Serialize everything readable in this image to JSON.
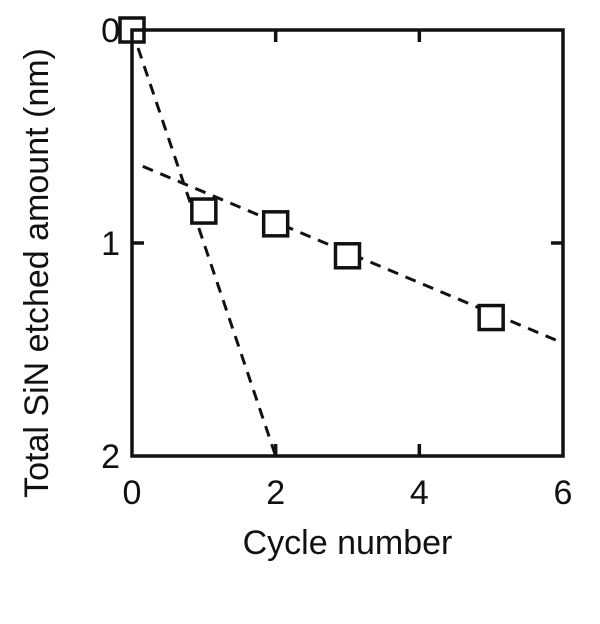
{
  "chart_data": {
    "type": "scatter",
    "title": "",
    "xlabel": "Cycle number",
    "ylabel": "Total SiN etched amount (nm)",
    "xlim": [
      0,
      6
    ],
    "ylim": [
      0,
      2
    ],
    "y_inverted": true,
    "grid": false,
    "x_ticks": [
      0,
      2,
      4,
      6
    ],
    "x_tick_labels": [
      "0",
      "2",
      "4",
      "6"
    ],
    "y_ticks": [
      0,
      1,
      2
    ],
    "y_tick_labels": [
      "0",
      "1",
      "2"
    ],
    "marker": "open-square",
    "series": [
      {
        "x": [
          0,
          1,
          2,
          3,
          5
        ],
        "y": [
          0,
          0.85,
          0.91,
          1.06,
          1.35
        ]
      }
    ],
    "fit_lines": [
      {
        "style": "dashed",
        "x": [
          0,
          2.0
        ],
        "y": [
          0,
          2.0
        ]
      },
      {
        "style": "dashed",
        "x": [
          0.15,
          6.0
        ],
        "y": [
          0.64,
          1.47
        ]
      }
    ]
  }
}
